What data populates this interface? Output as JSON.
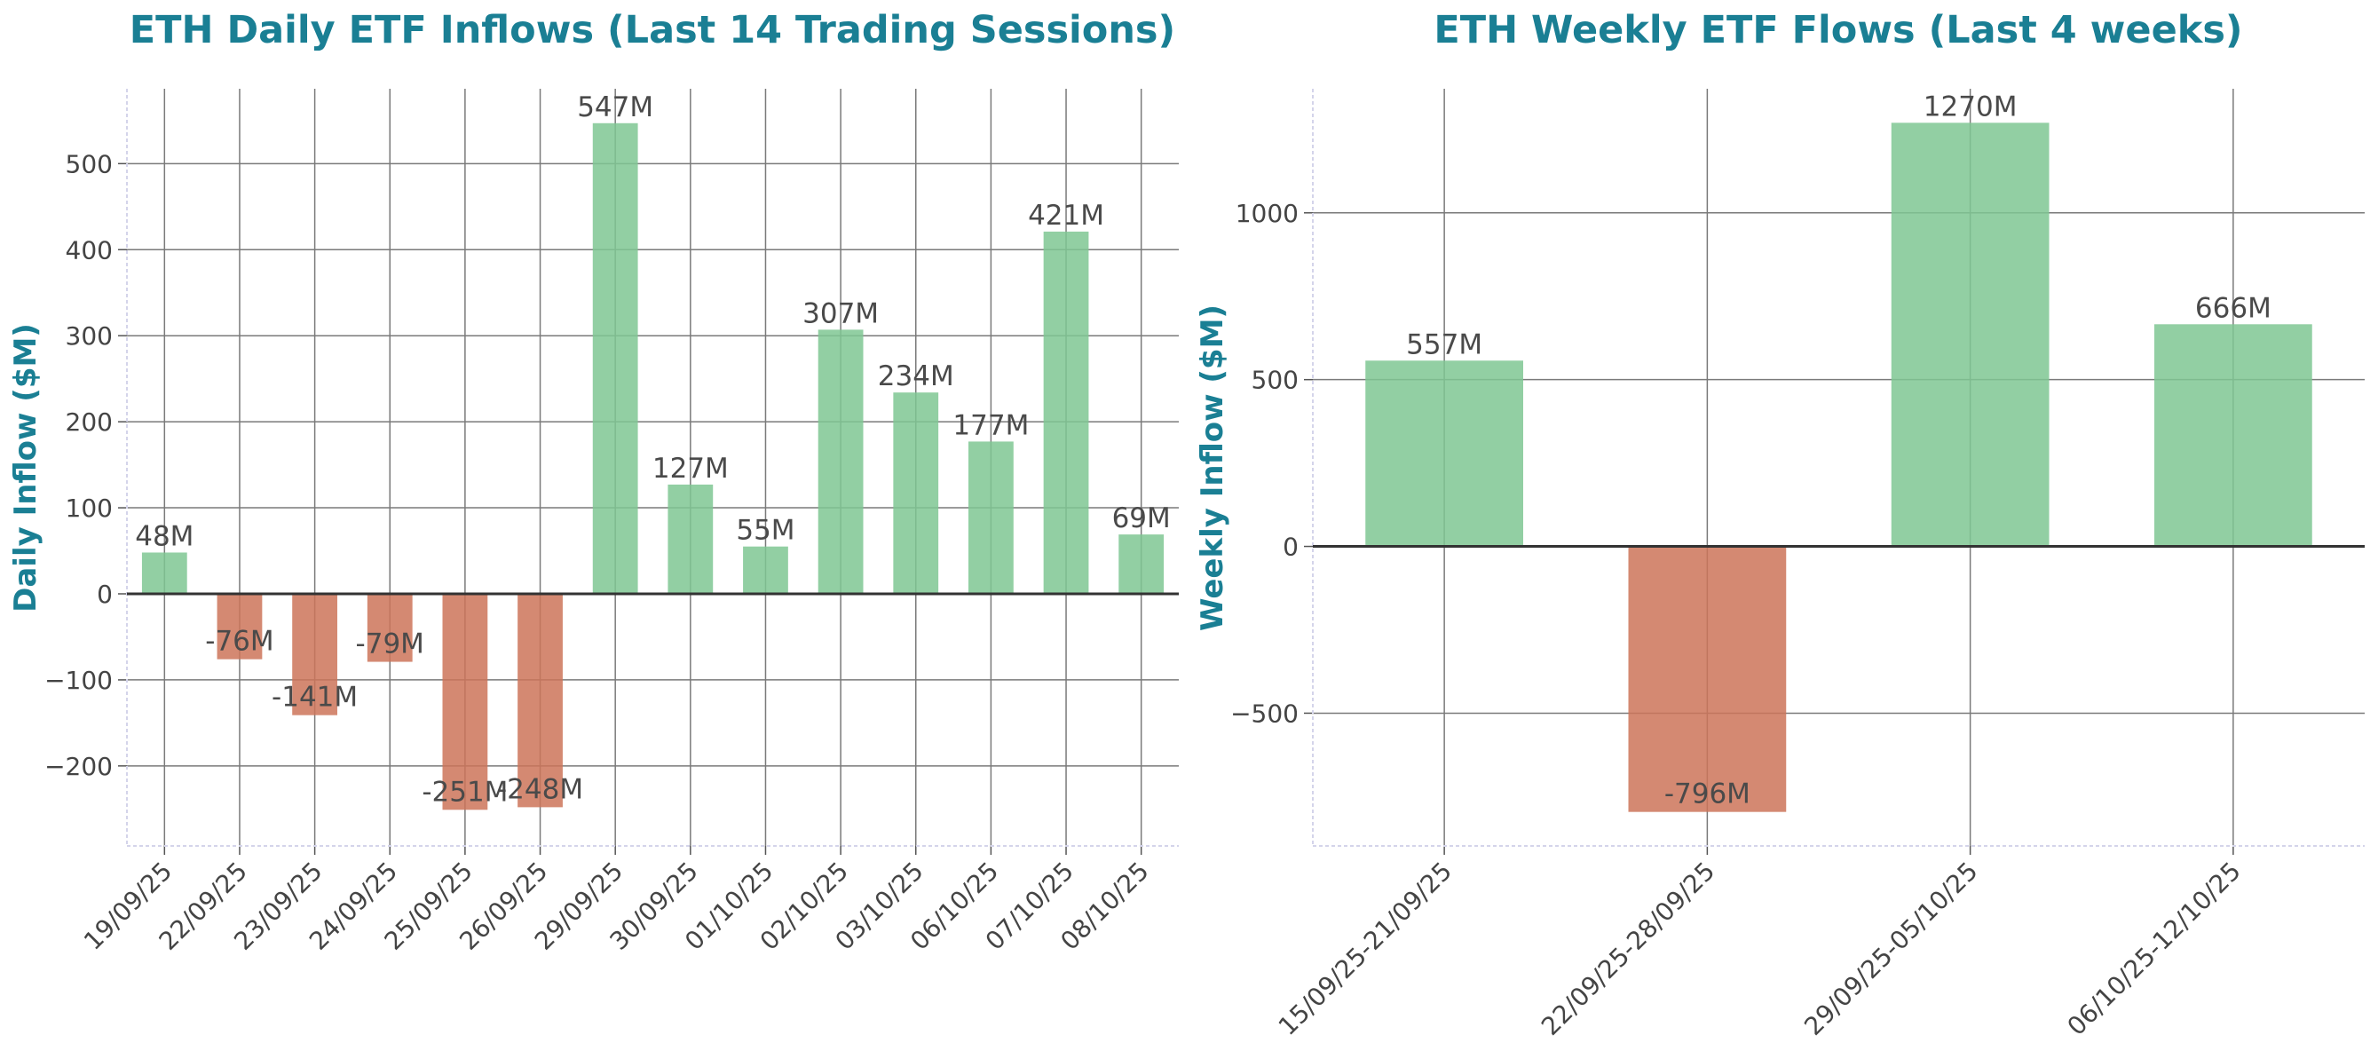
{
  "colors": {
    "positive": "#7fc793",
    "negative": "#cc7459",
    "title": "#1a7f94"
  },
  "chart_data": [
    {
      "type": "bar",
      "title": "ETH Daily ETF Inflows (Last 14 Trading Sessions)",
      "xlabel": "",
      "ylabel": "Daily Inflow ($M)",
      "categories": [
        "19/09/25",
        "22/09/25",
        "23/09/25",
        "24/09/25",
        "25/09/25",
        "26/09/25",
        "29/09/25",
        "30/09/25",
        "01/10/25",
        "02/10/25",
        "03/10/25",
        "06/10/25",
        "07/10/25",
        "08/10/25"
      ],
      "values": [
        48,
        -76,
        -141,
        -79,
        -251,
        -248,
        547,
        127,
        55,
        307,
        234,
        177,
        421,
        69
      ],
      "labels": [
        "48M",
        "-76M",
        "-141M",
        "-79M",
        "-251M",
        "-248M",
        "547M",
        "127M",
        "55M",
        "307M",
        "234M",
        "177M",
        "421M",
        "69M"
      ],
      "ylim": [
        -293,
        587
      ],
      "yticks": [
        -200,
        -100,
        0,
        100,
        200,
        300,
        400,
        500
      ],
      "ytick_labels": [
        "−200",
        "−100",
        "0",
        "100",
        "200",
        "300",
        "400",
        "500"
      ],
      "grid": true
    },
    {
      "type": "bar",
      "title": "ETH Weekly ETF Flows (Last 4 weeks)",
      "xlabel": "",
      "ylabel": "Weekly Inflow ($M)",
      "categories": [
        "15/09/25-21/09/25",
        "22/09/25-28/09/25",
        "29/09/25-05/10/25",
        "06/10/25-12/10/25"
      ],
      "values": [
        557,
        -796,
        1270,
        666
      ],
      "labels": [
        "557M",
        "-796M",
        "1270M",
        "666M"
      ],
      "ylim": [
        -898,
        1372
      ],
      "yticks": [
        -500,
        0,
        500,
        1000
      ],
      "ytick_labels": [
        "−500",
        "0",
        "500",
        "1000"
      ],
      "grid": true
    }
  ]
}
